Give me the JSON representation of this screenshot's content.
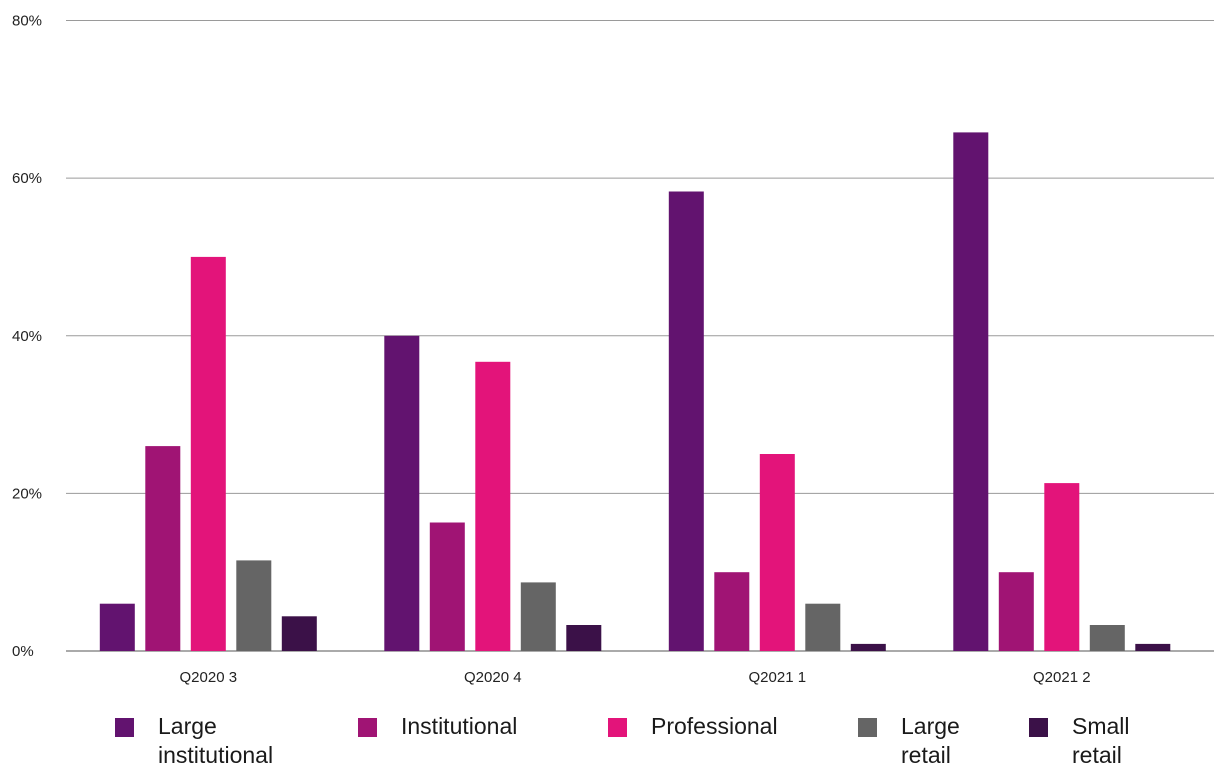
{
  "chart_data": {
    "type": "bar",
    "categories": [
      "Q2020 3",
      "Q2020 4",
      "Q2021 1",
      "Q2021 2"
    ],
    "series": [
      {
        "name": "Large institutional",
        "color": "#62136F",
        "values": [
          6,
          40,
          58.3,
          65.8
        ]
      },
      {
        "name": "Institutional",
        "color": "#A01474",
        "values": [
          26,
          16.3,
          10,
          10
        ]
      },
      {
        "name": "Professional",
        "color": "#E3147A",
        "values": [
          50,
          36.7,
          25,
          21.3
        ]
      },
      {
        "name": "Large retail",
        "color": "#656565",
        "values": [
          11.5,
          8.7,
          6,
          3.3
        ]
      },
      {
        "name": "Small retail",
        "color": "#3B1148",
        "values": [
          4.4,
          3.3,
          0.9,
          0.9
        ]
      }
    ],
    "y_ticks": [
      "0%",
      "20%",
      "40%",
      "60%",
      "80%"
    ],
    "ylim": [
      0,
      80
    ],
    "grid": true,
    "legend": {
      "position": "bottom",
      "labels": [
        "Large institutional",
        "Institutional",
        "Professional",
        "Large retail",
        "Small retail"
      ]
    }
  }
}
